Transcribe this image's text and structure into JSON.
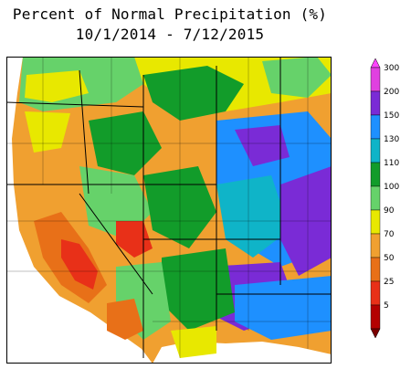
{
  "title": {
    "line1": "Percent of Normal Precipitation (%)",
    "line2": "10/1/2014 - 7/12/2015"
  },
  "legend": {
    "bins": [
      {
        "label": "300",
        "color": "#e040e0"
      },
      {
        "label": "200",
        "color": "#7a2bd6"
      },
      {
        "label": "150",
        "color": "#1e90ff"
      },
      {
        "label": "130",
        "color": "#0fb4c8"
      },
      {
        "label": "110",
        "color": "#129c2a"
      },
      {
        "label": "100",
        "color": "#66d26a"
      },
      {
        "label": "90",
        "color": "#e8e800"
      },
      {
        "label": "70",
        "color": "#f0a030"
      },
      {
        "label": "50",
        "color": "#e87018"
      },
      {
        "label": "25",
        "color": "#e83018"
      },
      {
        "label": "5",
        "color": "#b40000"
      }
    ],
    "top_color": "#ff44ff",
    "bottom_color": "#7a0000"
  },
  "map": {
    "background": "#f0a030",
    "border_color": "#000000"
  }
}
